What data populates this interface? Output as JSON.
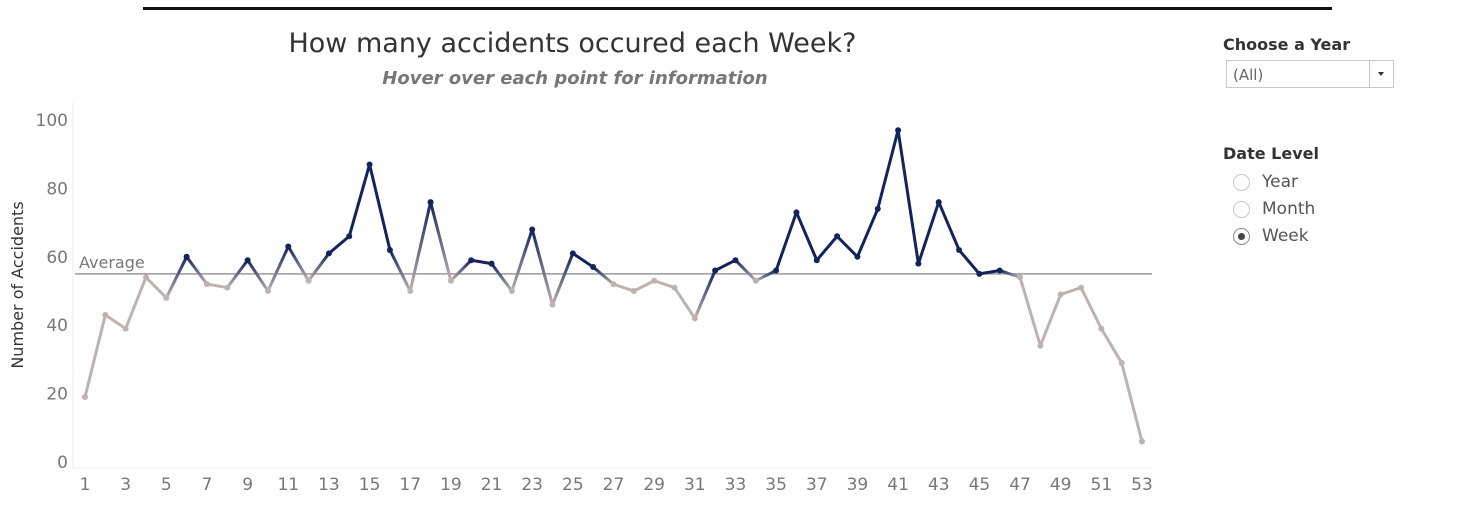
{
  "chart_data": {
    "type": "line",
    "title": "How many accidents occured each Week?",
    "subtitle": "Hover over each point for information",
    "ylabel": "Number of Accidents",
    "xlabel": "",
    "ylim": [
      0,
      100
    ],
    "yticks": [
      0,
      20,
      40,
      60,
      80,
      100
    ],
    "xticks": [
      1,
      3,
      5,
      7,
      9,
      11,
      13,
      15,
      17,
      19,
      21,
      23,
      25,
      27,
      29,
      31,
      33,
      35,
      37,
      39,
      41,
      43,
      45,
      47,
      49,
      51,
      53
    ],
    "x": [
      1,
      2,
      3,
      4,
      5,
      6,
      7,
      8,
      9,
      10,
      11,
      12,
      13,
      14,
      15,
      16,
      17,
      18,
      19,
      20,
      21,
      22,
      23,
      24,
      25,
      26,
      27,
      28,
      29,
      30,
      31,
      32,
      33,
      34,
      35,
      36,
      37,
      38,
      39,
      40,
      41,
      42,
      43,
      44,
      45,
      46,
      47,
      48,
      49,
      50,
      51,
      52,
      53
    ],
    "values": [
      19,
      43,
      39,
      54,
      48,
      60,
      52,
      51,
      59,
      50,
      63,
      53,
      61,
      66,
      87,
      62,
      50,
      76,
      53,
      59,
      58,
      50,
      68,
      46,
      61,
      57,
      52,
      50,
      53,
      51,
      42,
      56,
      59,
      53,
      56,
      73,
      59,
      66,
      60,
      74,
      97,
      58,
      76,
      62,
      55,
      56,
      54,
      34,
      49,
      51,
      39,
      29,
      6
    ],
    "reference_line": {
      "label": "Average",
      "value": 55
    },
    "colors": {
      "above_average": "#13235b",
      "below_average": "#bdb3b0",
      "reference_line": "#999999"
    },
    "grid": false
  },
  "filters": {
    "year": {
      "label": "Choose a Year",
      "selected": "(All)"
    },
    "date_level": {
      "label": "Date Level",
      "options": [
        {
          "label": "Year",
          "selected": false
        },
        {
          "label": "Month",
          "selected": false
        },
        {
          "label": "Week",
          "selected": true
        }
      ]
    }
  }
}
